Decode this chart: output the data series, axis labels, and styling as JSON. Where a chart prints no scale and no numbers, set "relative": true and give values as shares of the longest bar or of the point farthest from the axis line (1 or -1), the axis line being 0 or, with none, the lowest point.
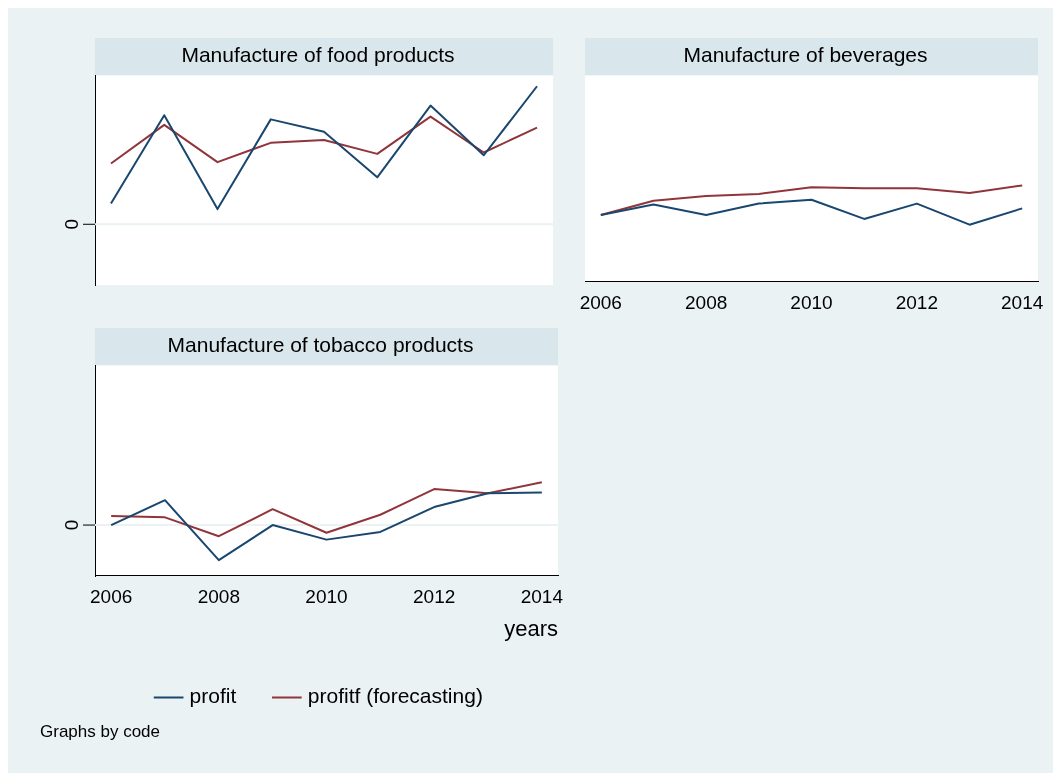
{
  "chart_data": [
    {
      "type": "line",
      "title": "Manufacture of food products",
      "categories": [
        null,
        null,
        null,
        null,
        null,
        null,
        null,
        null,
        null
      ],
      "relative": true,
      "tick_labels": false,
      "marker": "none",
      "legend": false,
      "ref_lines": [
        {
          "axis": "y",
          "value": 0,
          "label": "0"
        }
      ],
      "series": [
        {
          "color": "#1a476f",
          "values": [
            0.15,
            0.79,
            0.11,
            0.76,
            0.67,
            0.34,
            0.86,
            0.5,
            1
          ]
        },
        {
          "color": "#90353b",
          "values": [
            0.44,
            0.72,
            0.45,
            0.59,
            0.61,
            0.51,
            0.78,
            0.52,
            0.7
          ]
        }
      ]
    },
    {
      "type": "line",
      "title": "Manufacture of beverages",
      "x": [
        2006,
        2007,
        2008,
        2009,
        2010,
        2011,
        2012,
        2013,
        2014
      ],
      "xlim": [
        2005.7,
        2014.3
      ],
      "xticks": [
        2006,
        2008,
        2010,
        2012,
        2014
      ],
      "relative": true,
      "marker": "none",
      "legend": false,
      "series": [
        {
          "color": "#1a476f",
          "values": [
            0.69,
            0.8,
            0.69,
            0.81,
            0.85,
            0.65,
            0.81,
            0.59,
            0.76
          ]
        },
        {
          "color": "#90353b",
          "values": [
            0.69,
            0.84,
            0.89,
            0.91,
            0.98,
            0.97,
            0.97,
            0.92,
            1
          ]
        }
      ]
    },
    {
      "type": "line",
      "title": "Manufacture of tobacco products",
      "xlabel": "years",
      "x": [
        2006,
        2007,
        2008,
        2009,
        2010,
        2011,
        2012,
        2013,
        2014
      ],
      "xlim": [
        2005.7,
        2014.3
      ],
      "xticks": [
        2006,
        2008,
        2010,
        2012,
        2014
      ],
      "relative": true,
      "marker": "none",
      "legend": "bottom",
      "ref_lines": [
        {
          "axis": "y",
          "value": 0,
          "label": "0"
        }
      ],
      "annotations": [
        "Graphs by code"
      ],
      "series": [
        {
          "name": "profit",
          "color": "#1a476f",
          "values": [
            0,
            0.58,
            -0.82,
            0,
            -0.34,
            -0.16,
            0.42,
            0.74,
            0.76
          ]
        },
        {
          "name": "profitf (forecasting)",
          "color": "#90353b",
          "values": [
            0.21,
            0.18,
            -0.26,
            0.37,
            -0.18,
            0.24,
            0.84,
            0.74,
            1
          ]
        }
      ]
    }
  ]
}
